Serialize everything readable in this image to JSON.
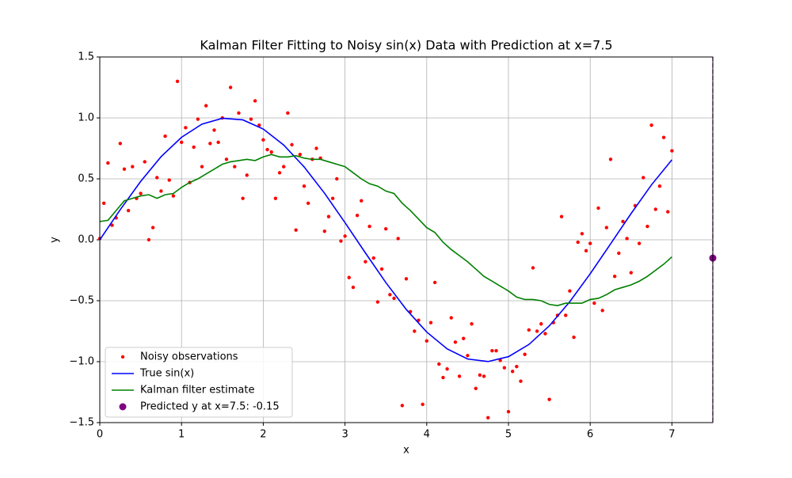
{
  "chart_data": {
    "type": "line",
    "title": "Kalman Filter Fitting to Noisy sin(x) Data with Prediction at x=7.5",
    "x_label": "x",
    "y_label": "y",
    "xlim": [
      0,
      7.5
    ],
    "ylim": [
      -1.5,
      1.5
    ],
    "xticks": [
      0,
      1,
      2,
      3,
      4,
      5,
      6,
      7
    ],
    "yticks": [
      {
        "value": -1.5,
        "label": "−1.5"
      },
      {
        "value": -1.0,
        "label": "−1.0"
      },
      {
        "value": -0.5,
        "label": "−0.5"
      },
      {
        "value": 0,
        "label": "0.0"
      },
      {
        "value": 0.5,
        "label": "0.5"
      },
      {
        "value": 1.0,
        "label": "1.0"
      },
      {
        "value": 1.5,
        "label": "1.5"
      }
    ],
    "grid": true,
    "legend": "lower left",
    "series": [
      {
        "name": "Noisy observations",
        "style": "markers",
        "color": "red",
        "x": [
          0,
          0.05,
          0.1,
          0.15,
          0.2,
          0.25,
          0.3,
          0.35,
          0.4,
          0.45,
          0.5,
          0.55,
          0.6,
          0.65,
          0.7,
          0.75,
          0.8,
          0.85,
          0.9,
          0.95,
          1,
          1.05,
          1.1,
          1.15,
          1.2,
          1.25,
          1.3,
          1.35,
          1.4,
          1.45,
          1.5,
          1.55,
          1.6,
          1.65,
          1.7,
          1.75,
          1.8,
          1.85,
          1.9,
          1.95,
          2,
          2.05,
          2.1,
          2.15,
          2.2,
          2.25,
          2.3,
          2.35,
          2.4,
          2.45,
          2.5,
          2.55,
          2.6,
          2.65,
          2.7,
          2.75,
          2.8,
          2.85,
          2.9,
          2.95,
          3,
          3.05,
          3.1,
          3.15,
          3.2,
          3.25,
          3.3,
          3.35,
          3.4,
          3.45,
          3.5,
          3.55,
          3.6,
          3.65,
          3.7,
          3.75,
          3.8,
          3.85,
          3.9,
          3.95,
          4,
          4.05,
          4.1,
          4.15,
          4.2,
          4.25,
          4.3,
          4.35,
          4.4,
          4.45,
          4.5,
          4.55,
          4.6,
          4.65,
          4.7,
          4.75,
          4.8,
          4.85,
          4.9,
          4.95,
          5,
          5.05,
          5.1,
          5.15,
          5.2,
          5.25,
          5.3,
          5.35,
          5.4,
          5.45,
          5.5,
          5.55,
          5.6,
          5.65,
          5.7,
          5.75,
          5.8,
          5.85,
          5.9,
          5.95,
          6,
          6.05,
          6.1,
          6.15,
          6.2,
          6.25,
          6.3,
          6.35,
          6.4,
          6.45,
          6.5,
          6.55,
          6.6,
          6.65,
          6.7,
          6.75,
          6.8,
          6.85,
          6.9,
          6.95,
          7
        ],
        "values": [
          0.01,
          0.3,
          0.63,
          0.12,
          0.18,
          0.79,
          0.58,
          0.24,
          0.6,
          0.34,
          0.38,
          0.64,
          0.0,
          0.1,
          0.51,
          0.4,
          0.85,
          0.49,
          0.36,
          1.3,
          0.8,
          0.92,
          0.47,
          0.76,
          0.99,
          0.6,
          1.1,
          0.79,
          0.9,
          0.8,
          1.0,
          0.66,
          1.25,
          0.6,
          1.04,
          0.34,
          0.53,
          0.99,
          1.14,
          0.94,
          0.82,
          0.74,
          0.72,
          0.34,
          0.55,
          0.6,
          1.04,
          0.78,
          0.08,
          0.7,
          0.44,
          0.3,
          0.66,
          0.75,
          0.67,
          0.07,
          0.19,
          0.34,
          0.5,
          -0.01,
          0.03,
          -0.31,
          -0.39,
          0.2,
          0.32,
          -0.18,
          0.11,
          -0.15,
          -0.51,
          -0.24,
          0.09,
          -0.45,
          -0.48,
          0.01,
          -1.36,
          -0.32,
          -0.59,
          -0.75,
          -0.66,
          -1.35,
          -0.83,
          -0.68,
          -0.35,
          -1.02,
          -1.13,
          -1.06,
          -0.64,
          -0.84,
          -1.12,
          -0.81,
          -0.95,
          -0.69,
          -1.22,
          -1.11,
          -1.12,
          -1.46,
          -0.91,
          -0.91,
          -0.99,
          -1.05,
          -1.41,
          -1.08,
          -1.04,
          -1.16,
          -0.94,
          -0.74,
          -0.23,
          -0.75,
          -0.69,
          -0.77,
          -1.31,
          -0.68,
          -0.62,
          0.19,
          -0.62,
          -0.42,
          -0.8,
          -0.02,
          0.05,
          -0.09,
          -0.03,
          -0.52,
          0.26,
          -0.58,
          0.1,
          0.66,
          -0.3,
          -0.11,
          0.15,
          0.01,
          -0.27,
          0.28,
          -0.03,
          0.51,
          0.11,
          0.94,
          0.25,
          0.44,
          0.84,
          0.23,
          0.73
        ]
      },
      {
        "name": "True sin(x)",
        "style": "line",
        "color": "blue",
        "x": [
          0,
          0.25,
          0.5,
          0.75,
          1,
          1.25,
          1.5,
          1.75,
          2,
          2.25,
          2.5,
          2.75,
          3,
          3.25,
          3.5,
          3.75,
          4,
          4.25,
          4.5,
          4.75,
          5,
          5.25,
          5.5,
          5.75,
          6,
          6.25,
          6.5,
          6.75,
          7
        ],
        "values": [
          0,
          0.247,
          0.479,
          0.682,
          0.841,
          0.949,
          0.997,
          0.984,
          0.909,
          0.778,
          0.598,
          0.382,
          0.141,
          -0.108,
          -0.351,
          -0.572,
          -0.757,
          -0.895,
          -0.978,
          -0.999,
          -0.959,
          -0.859,
          -0.706,
          -0.508,
          -0.279,
          -0.033,
          0.215,
          0.451,
          0.657
        ]
      },
      {
        "name": "Kalman filter estimate",
        "style": "line",
        "color": "green",
        "x": [
          0,
          0.1,
          0.2,
          0.3,
          0.4,
          0.5,
          0.6,
          0.7,
          0.8,
          0.9,
          1,
          1.1,
          1.2,
          1.3,
          1.4,
          1.5,
          1.6,
          1.7,
          1.8,
          1.9,
          2,
          2.1,
          2.2,
          2.3,
          2.4,
          2.5,
          2.6,
          2.7,
          2.8,
          2.9,
          3,
          3.1,
          3.2,
          3.3,
          3.4,
          3.5,
          3.6,
          3.7,
          3.8,
          3.9,
          4,
          4.1,
          4.2,
          4.3,
          4.4,
          4.5,
          4.6,
          4.7,
          4.8,
          4.9,
          5,
          5.1,
          5.2,
          5.3,
          5.4,
          5.5,
          5.6,
          5.7,
          5.8,
          5.9,
          6,
          6.1,
          6.2,
          6.3,
          6.4,
          6.5,
          6.6,
          6.7,
          6.8,
          6.9,
          7
        ],
        "values": [
          0.15,
          0.16,
          0.24,
          0.32,
          0.34,
          0.36,
          0.37,
          0.34,
          0.37,
          0.38,
          0.43,
          0.47,
          0.5,
          0.54,
          0.58,
          0.62,
          0.64,
          0.65,
          0.66,
          0.65,
          0.68,
          0.7,
          0.68,
          0.68,
          0.69,
          0.67,
          0.66,
          0.66,
          0.64,
          0.62,
          0.6,
          0.55,
          0.5,
          0.46,
          0.44,
          0.4,
          0.38,
          0.3,
          0.24,
          0.17,
          0.1,
          0.06,
          -0.02,
          -0.08,
          -0.13,
          -0.18,
          -0.24,
          -0.3,
          -0.34,
          -0.38,
          -0.42,
          -0.47,
          -0.49,
          -0.49,
          -0.5,
          -0.53,
          -0.54,
          -0.52,
          -0.52,
          -0.52,
          -0.49,
          -0.48,
          -0.45,
          -0.41,
          -0.39,
          -0.37,
          -0.34,
          -0.3,
          -0.25,
          -0.2,
          -0.14
        ]
      },
      {
        "name": "Predicted y at x=7.5: -0.15",
        "style": "point",
        "color": "purple",
        "guide_line": "dashed",
        "x": [
          7.5
        ],
        "values": [
          -0.15
        ]
      }
    ]
  }
}
